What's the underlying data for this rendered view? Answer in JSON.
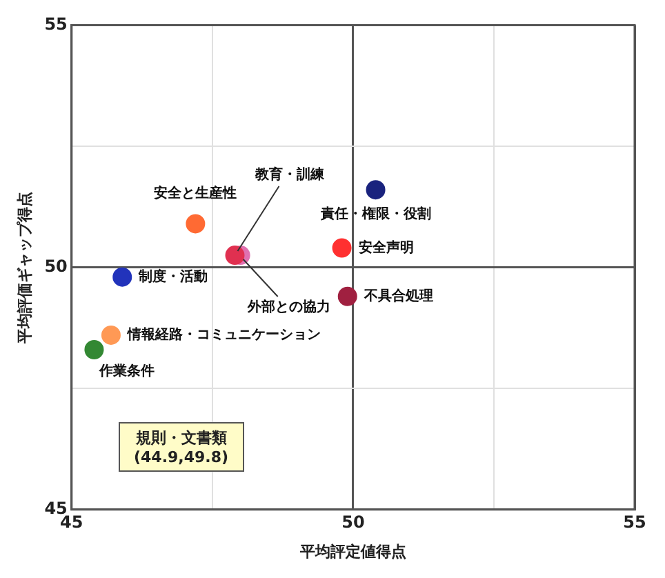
{
  "chart_data": {
    "type": "scatter",
    "xlabel": "平均評定値得点",
    "ylabel": "平均評価ギャップ得点",
    "xlim": [
      45,
      55
    ],
    "ylim": [
      45,
      55
    ],
    "xticks": [
      45,
      {
        "value": 47.5,
        "label": null
      },
      50,
      {
        "value": 52.5,
        "label": null
      },
      55
    ],
    "yticks": [
      45,
      {
        "value": 47.5,
        "label": null
      },
      50,
      {
        "value": 52.5,
        "label": null
      },
      55
    ],
    "grid": true,
    "legend": false,
    "marker": "circle",
    "series": [
      {
        "name": "安全と生産性",
        "color": "#ff6a33",
        "x": [
          47.2
        ],
        "values": [
          50.9
        ]
      },
      {
        "name": "教育・訓練",
        "color": "#e03050",
        "x": [
          47.9
        ],
        "values": [
          50.25
        ]
      },
      {
        "name": "外部との協力",
        "color": "#e070b0",
        "x": [
          48.0
        ],
        "values": [
          50.25
        ]
      },
      {
        "name": "制度・活動",
        "color": "#2233bb",
        "x": [
          45.9
        ],
        "values": [
          49.8
        ]
      },
      {
        "name": "情報経路・コミュニケーション",
        "color": "#ff9955",
        "x": [
          45.7
        ],
        "values": [
          48.6
        ]
      },
      {
        "name": "作業条件",
        "color": "#338833",
        "x": [
          45.4
        ],
        "values": [
          48.3
        ]
      },
      {
        "name": "責任・権限・役割",
        "color": "#1a237e",
        "x": [
          50.4
        ],
        "values": [
          51.6
        ]
      },
      {
        "name": "安全声明",
        "color": "#ff3030",
        "x": [
          49.8
        ],
        "values": [
          50.4
        ]
      },
      {
        "name": "不具合処理",
        "color": "#a02040",
        "x": [
          49.9
        ],
        "values": [
          49.4
        ]
      }
    ],
    "annotations": [
      "規則・文書類",
      "(44.9,49.8)"
    ]
  }
}
